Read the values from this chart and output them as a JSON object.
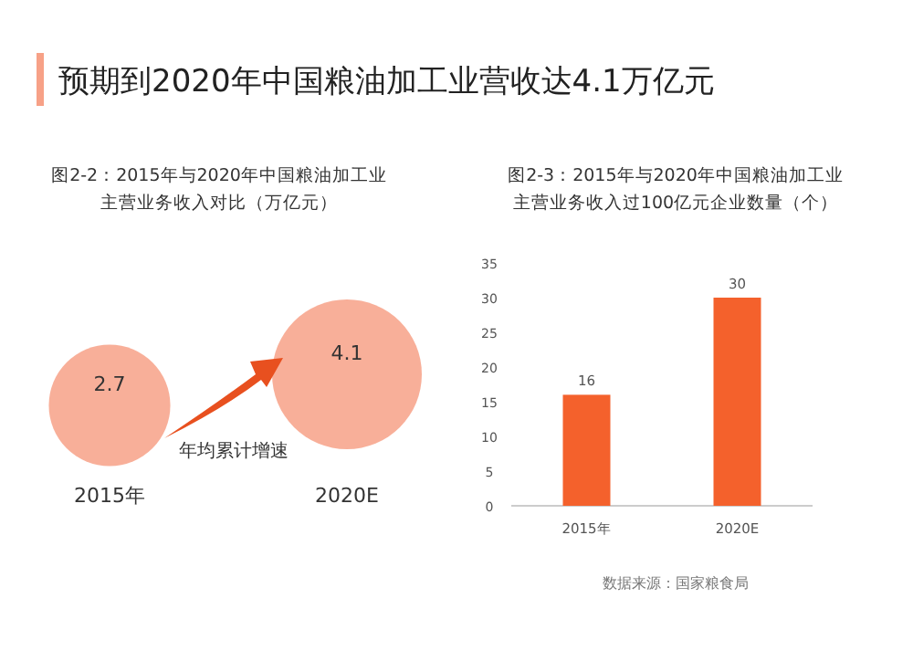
{
  "chart_data": [
    {
      "type": "other",
      "title": "预期到2020年中国粮油加工业营收达4.1万亿元",
      "subtitle": "图2-2：2015年与2020年中国粮油加工业主营业务收入对比（万亿元）",
      "categories": [
        "2015年",
        "2020E"
      ],
      "values": [
        2.7,
        4.1
      ],
      "color": "#f7a187",
      "data_labels": true,
      "annotations": [
        "年均累计增速"
      ]
    },
    {
      "type": "bar",
      "title": "图2-3：2015年与2020年中国粮油加工业主营业务收入过100亿元企业数量（个）",
      "categories": [
        "2015年",
        "2020E"
      ],
      "values": [
        16,
        30
      ],
      "color": "#f4612c",
      "ylim": [
        0,
        35
      ],
      "yticks": [
        0,
        5,
        10,
        15,
        20,
        25,
        30,
        35
      ],
      "data_labels": true,
      "grid": false,
      "annotations": [
        "数据来源：国家粮食局"
      ]
    }
  ]
}
